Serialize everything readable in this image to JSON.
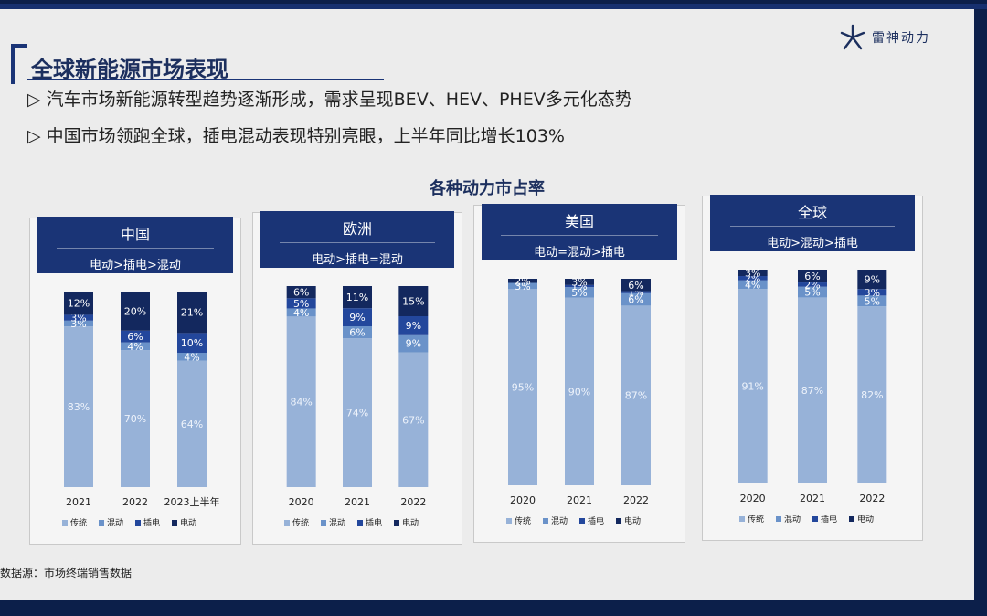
{
  "slide": {
    "title": "全球新能源市场表现",
    "logo_text": "雷神动力",
    "bullets": [
      "▷ 汽车市场新能源转型趋势逐渐形成，需求呈现BEV、HEV、PHEV多元化态势",
      "▷ 中国市场领跑全球，插电混动表现特别亮眼，上半年同比增长103%"
    ],
    "chart_heading": "各种动力市占率",
    "source": "数据源：市场终端销售数据"
  },
  "colors": {
    "传统": "#97b2d8",
    "混动": "#6a92c9",
    "插电": "#23479c",
    "电动": "#13285e",
    "header": "#1a3476"
  },
  "chart_data": [
    {
      "type": "bar",
      "stacked": true,
      "title": "中国",
      "subtitle": "电动>插电>混动",
      "categories": [
        "2021",
        "2022",
        "2023上半年"
      ],
      "series": [
        {
          "name": "传统",
          "values": [
            83,
            70,
            64
          ]
        },
        {
          "name": "混动",
          "values": [
            3,
            4,
            4
          ]
        },
        {
          "name": "插电",
          "values": [
            3,
            6,
            10
          ]
        },
        {
          "name": "电动",
          "values": [
            12,
            20,
            21
          ]
        }
      ],
      "legend": [
        "传统",
        "混动",
        "插电",
        "电动"
      ],
      "legend_position": "bottom"
    },
    {
      "type": "bar",
      "stacked": true,
      "title": "欧洲",
      "subtitle": "电动>插电=混动",
      "categories": [
        "2020",
        "2021",
        "2022"
      ],
      "series": [
        {
          "name": "传统",
          "values": [
            84,
            74,
            67
          ]
        },
        {
          "name": "混动",
          "values": [
            4,
            6,
            9
          ]
        },
        {
          "name": "插电",
          "values": [
            5,
            9,
            9
          ]
        },
        {
          "name": "电动",
          "values": [
            6,
            11,
            15
          ]
        }
      ],
      "legend": [
        "传统",
        "混动",
        "插电",
        "电动"
      ],
      "legend_position": "bottom"
    },
    {
      "type": "bar",
      "stacked": true,
      "title": "美国",
      "subtitle": "电动=混动>插电",
      "categories": [
        "2020",
        "2021",
        "2022"
      ],
      "series": [
        {
          "name": "传统",
          "values": [
            95,
            90,
            87
          ]
        },
        {
          "name": "混动",
          "values": [
            3,
            5,
            6
          ]
        },
        {
          "name": "插电",
          "values": [
            0,
            1,
            1
          ]
        },
        {
          "name": "电动",
          "values": [
            2,
            3,
            6
          ]
        }
      ],
      "legend": [
        "传统",
        "混动",
        "插电",
        "电动"
      ],
      "legend_position": "bottom"
    },
    {
      "type": "bar",
      "stacked": true,
      "title": "全球",
      "subtitle": "电动>混动>插电",
      "categories": [
        "2020",
        "2021",
        "2022"
      ],
      "series": [
        {
          "name": "传统",
          "values": [
            91,
            87,
            82
          ]
        },
        {
          "name": "混动",
          "values": [
            4,
            5,
            5
          ]
        },
        {
          "name": "插电",
          "values": [
            2,
            2,
            3
          ]
        },
        {
          "name": "电动",
          "values": [
            3,
            6,
            9
          ]
        }
      ],
      "legend": [
        "传统",
        "混动",
        "插电",
        "电动"
      ],
      "legend_position": "bottom"
    }
  ]
}
